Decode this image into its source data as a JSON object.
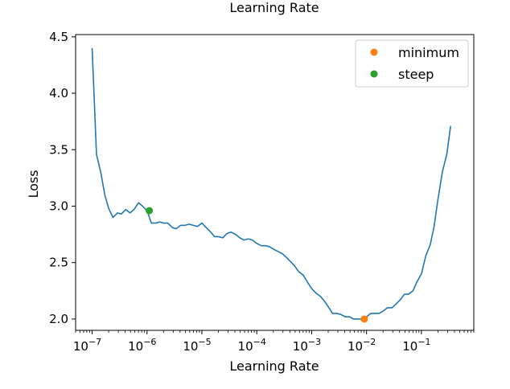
{
  "chart_data": {
    "type": "line",
    "title": "Learning Rate",
    "xlabel": "Learning Rate",
    "ylabel": "Loss",
    "xscale": "log",
    "xlim": [
      5e-08,
      0.9
    ],
    "ylim": [
      1.9,
      4.52
    ],
    "grid": false,
    "legend_position": "top-right",
    "x_ticks": [
      {
        "value": 1e-07,
        "base": "10",
        "exp": "−7"
      },
      {
        "value": 1e-06,
        "base": "10",
        "exp": "−6"
      },
      {
        "value": 1e-05,
        "base": "10",
        "exp": "−5"
      },
      {
        "value": 0.0001,
        "base": "10",
        "exp": "−4"
      },
      {
        "value": 0.001,
        "base": "10",
        "exp": "−3"
      },
      {
        "value": 0.01,
        "base": "10",
        "exp": "−2"
      },
      {
        "value": 0.1,
        "base": "10",
        "exp": "−1"
      }
    ],
    "y_ticks": [
      {
        "value": 2.0,
        "label": "2.0"
      },
      {
        "value": 2.5,
        "label": "2.5"
      },
      {
        "value": 3.0,
        "label": "3.0"
      },
      {
        "value": 3.5,
        "label": "3.5"
      },
      {
        "value": 4.0,
        "label": "4.0"
      },
      {
        "value": 4.5,
        "label": "4.5"
      }
    ],
    "series": [
      {
        "color": "#1f77b4",
        "x": [
          1e-07,
          1.2e-07,
          1.45e-07,
          1.7e-07,
          2e-07,
          2.4e-07,
          2.9e-07,
          3.4e-07,
          4.1e-07,
          4.9e-07,
          5.8e-07,
          7e-07,
          8.3e-07,
          1e-06,
          1.2e-06,
          1.45e-06,
          1.7e-06,
          2e-06,
          2.4e-06,
          2.9e-06,
          3.4e-06,
          4.1e-06,
          4.9e-06,
          5.8e-06,
          7e-06,
          8.3e-06,
          1e-05,
          1.2e-05,
          1.45e-05,
          1.7e-05,
          2e-05,
          2.4e-05,
          2.9e-05,
          3.4e-05,
          4.1e-05,
          4.9e-05,
          5.8e-05,
          7e-05,
          8.3e-05,
          0.0001,
          0.00012,
          0.000145,
          0.00017,
          0.0002,
          0.00024,
          0.00029,
          0.00034,
          0.00041,
          0.00049,
          0.00058,
          0.0007,
          0.00083,
          0.001,
          0.0012,
          0.00145,
          0.0017,
          0.002,
          0.0024,
          0.0029,
          0.0034,
          0.0041,
          0.0049,
          0.0058,
          0.007,
          0.0083,
          0.01,
          0.012,
          0.0145,
          0.017,
          0.02,
          0.024,
          0.029,
          0.034,
          0.041,
          0.049,
          0.058,
          0.07,
          0.083,
          0.1,
          0.12,
          0.145,
          0.17,
          0.2,
          0.24,
          0.29,
          0.34,
          0.41,
          0.49
        ],
        "y": [
          4.4,
          3.46,
          3.29,
          3.1,
          2.98,
          2.9,
          2.94,
          2.93,
          2.97,
          2.94,
          2.97,
          3.03,
          3.0,
          2.96,
          2.85,
          2.85,
          2.86,
          2.85,
          2.85,
          2.81,
          2.8,
          2.83,
          2.83,
          2.84,
          2.83,
          2.82,
          2.85,
          2.81,
          2.77,
          2.73,
          2.73,
          2.72,
          2.76,
          2.77,
          2.75,
          2.72,
          2.7,
          2.71,
          2.7,
          2.67,
          2.65,
          2.65,
          2.64,
          2.62,
          2.6,
          2.58,
          2.55,
          2.51,
          2.47,
          2.42,
          2.39,
          2.33,
          2.27,
          2.23,
          2.2,
          2.16,
          2.11,
          2.05,
          2.05,
          2.04,
          2.02,
          2.02,
          2.0,
          2.0,
          2.0,
          2.02,
          2.05,
          2.05,
          2.05,
          2.07,
          2.1,
          2.1,
          2.13,
          2.17,
          2.22,
          2.22,
          2.25,
          2.33,
          2.4,
          2.56,
          2.66,
          2.82,
          3.06,
          3.3,
          3.46,
          3.71,
          null,
          null
        ]
      }
    ],
    "points": [
      {
        "name": "minimum",
        "x": 0.0091,
        "y": 2.0,
        "color": "#ff7f0e"
      },
      {
        "name": "steep",
        "x": 1.1e-06,
        "y": 2.96,
        "color": "#2ca02c"
      }
    ]
  }
}
